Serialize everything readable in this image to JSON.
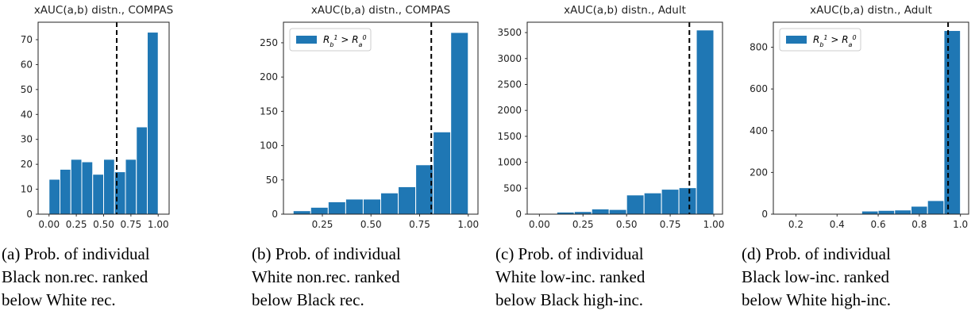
{
  "chart_data": [
    {
      "type": "histogram",
      "title": "xAUC(a,b) distn., COMPAS",
      "color": "#1f77b4",
      "bins": [
        0.0,
        0.1,
        0.2,
        0.3,
        0.4,
        0.5,
        0.6,
        0.7,
        0.8,
        0.9,
        1.0
      ],
      "values": [
        14,
        18,
        22,
        21,
        16,
        22,
        17,
        22,
        35,
        73
      ],
      "xlim": [
        -0.1,
        1.1
      ],
      "xticks": [
        {
          "value": 0,
          "label": "0.00"
        },
        {
          "value": 0.25,
          "label": "0.25"
        },
        {
          "value": 0.5,
          "label": "0.50"
        },
        {
          "value": 0.75,
          "label": "0.75"
        },
        {
          "value": 1,
          "label": "1.00"
        }
      ],
      "ylim": [
        0,
        77
      ],
      "yticks": [
        0,
        10,
        20,
        30,
        40,
        50,
        60,
        70
      ],
      "vline": 0.62,
      "caption": [
        "(a) Prob. of individual",
        "Black non.rec. ranked",
        "below White rec."
      ]
    },
    {
      "type": "histogram",
      "title": "xAUC(b,a) distn., COMPAS",
      "color": "#1f77b4",
      "bins": [
        0.1,
        0.19,
        0.28,
        0.37,
        0.46,
        0.55,
        0.64,
        0.73,
        0.82,
        0.91,
        1.0
      ],
      "values": [
        5,
        10,
        18,
        22,
        22,
        31,
        40,
        72,
        120,
        265
      ],
      "xlim": [
        0.05,
        1.05
      ],
      "xticks": [
        {
          "value": 0.25,
          "label": "0.25"
        },
        {
          "value": 0.5,
          "label": "0.50"
        },
        {
          "value": 0.75,
          "label": "0.75"
        },
        {
          "value": 1,
          "label": "1.00"
        }
      ],
      "ylim": [
        0,
        280
      ],
      "yticks": [
        0,
        50,
        100,
        150,
        200,
        250
      ],
      "vline": 0.81,
      "legend": {
        "name": "R_b^1 > R_a^0",
        "position": "upper-left"
      },
      "caption": [
        "(b) Prob. of individual",
        "White non.rec. ranked",
        "below Black rec."
      ]
    },
    {
      "type": "histogram",
      "title": "xAUC(a,b) distn., Adult",
      "color": "#1f77b4",
      "bins": [
        0.1,
        0.2,
        0.3,
        0.4,
        0.5,
        0.6,
        0.7,
        0.8,
        0.9,
        1.0
      ],
      "values": [
        40,
        50,
        100,
        90,
        370,
        410,
        480,
        510,
        3550
      ],
      "xlim": [
        -0.07,
        1.05
      ],
      "xticks": [
        {
          "value": 0,
          "label": "0.00"
        },
        {
          "value": 0.25,
          "label": "0.25"
        },
        {
          "value": 0.5,
          "label": "0.50"
        },
        {
          "value": 0.75,
          "label": "0.75"
        },
        {
          "value": 1,
          "label": "1.00"
        }
      ],
      "ylim": [
        0,
        3700
      ],
      "yticks": [
        0,
        500,
        1000,
        1500,
        2000,
        2500,
        3000,
        3500
      ],
      "vline": 0.86,
      "caption": [
        "(c) Prob. of individual",
        "White low-inc. ranked",
        "below Black high-inc."
      ]
    },
    {
      "type": "histogram",
      "title": "xAUC(b,a) distn., Adult",
      "color": "#1f77b4",
      "bins": [
        0.2,
        0.28,
        0.36,
        0.44,
        0.52,
        0.6,
        0.68,
        0.76,
        0.84,
        0.92,
        1.0
      ],
      "values": [
        1,
        1,
        2,
        3,
        15,
        18,
        20,
        38,
        65,
        880
      ],
      "xlim": [
        0.09,
        1.04
      ],
      "xticks": [
        0.2,
        0.4,
        0.6,
        0.8,
        {
          "value": 1,
          "label": "1.0"
        }
      ],
      "ylim": [
        0,
        920
      ],
      "yticks": [
        0,
        200,
        400,
        600,
        800
      ],
      "vline": 0.94,
      "legend": {
        "name": "R_b^1 > R_a^0",
        "position": "upper-left"
      },
      "caption": [
        "(d) Prob. of individual",
        "Black low-inc. ranked",
        "below White high-inc."
      ]
    }
  ]
}
